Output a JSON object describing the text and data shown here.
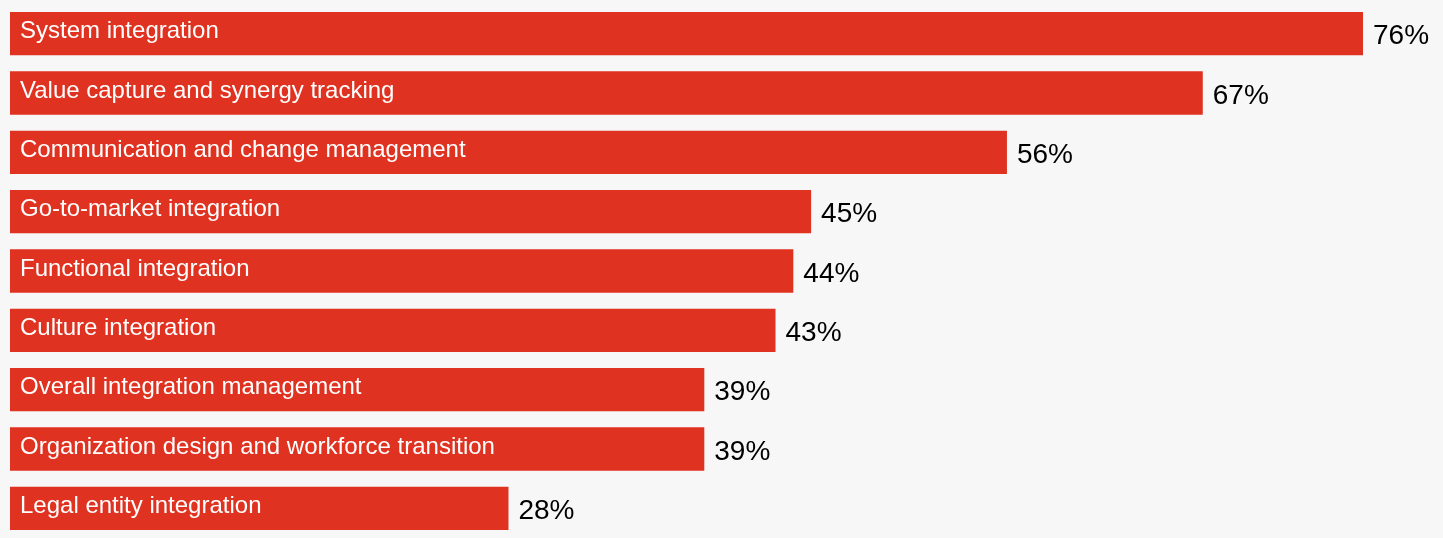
{
  "chart_data": {
    "type": "bar",
    "orientation": "horizontal",
    "categories": [
      "System integration",
      "Value capture and synergy tracking",
      "Communication and change management",
      "Go-to-market integration",
      "Functional integration",
      "Culture integration",
      "Overall integration management",
      "Organization design and workforce transition",
      "Legal entity integration"
    ],
    "values": [
      76,
      67,
      56,
      45,
      44,
      43,
      39,
      39,
      28
    ],
    "value_labels": [
      "76%",
      "67%",
      "56%",
      "45%",
      "44%",
      "43%",
      "39%",
      "39%",
      "28%"
    ],
    "color": "#e03220"
  }
}
